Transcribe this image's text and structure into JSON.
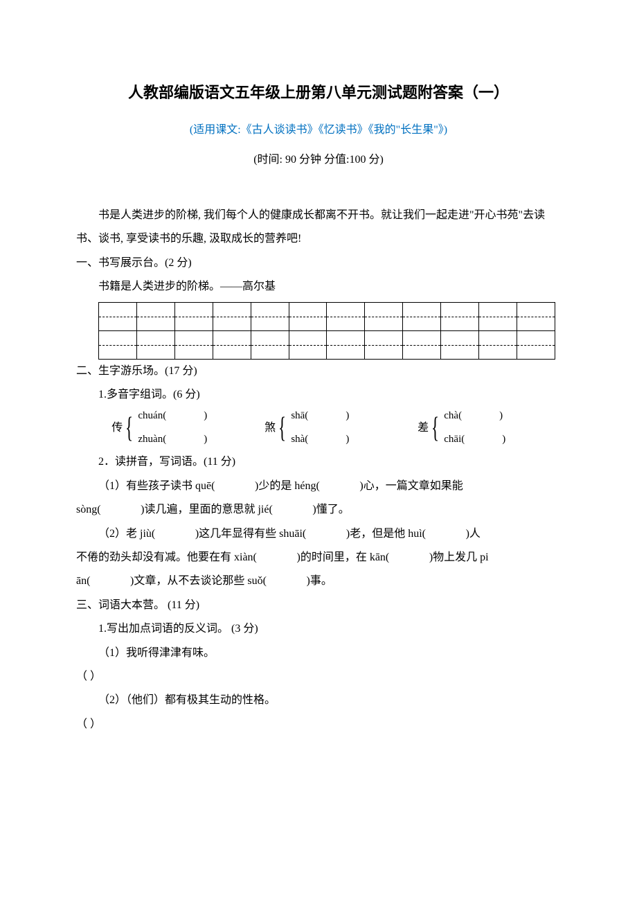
{
  "title": "人教部编版语文五年级上册第八单元测试题附答案（一）",
  "subtitle": "(适用课文:《古人谈读书》《忆读书》《我的\"长生果\"》)",
  "timing": "(时间: 90 分钟  分值:100 分)",
  "intro": "书是人类进步的阶梯, 我们每个人的健康成长都离不开书。就让我们一起走进\"开心书苑\"去读书、谈书, 享受读书的乐趣, 汲取成长的营养吧!",
  "s1_heading": "一、书写展示台。(2 分)",
  "s1_quote": "书籍是人类进步的阶梯。——高尔基",
  "grid": {
    "rows": 2,
    "cols": 12
  },
  "s2_heading": "二、生字游乐场。(17 分)",
  "s2_q1": "1.多音字组词。(6 分)",
  "poly": [
    {
      "char": "传",
      "p1": "chuán(",
      "p2": "zhuàn("
    },
    {
      "char": "煞",
      "p1": "shā(",
      "p2": "shà("
    },
    {
      "char": "差",
      "p1": "chà(",
      "p2": "chāi("
    }
  ],
  "s2_q2": "2．读拼音，写词语。(11 分)",
  "s2_q2_l1_a": "（1）有些孩子读书 quē(",
  "s2_q2_l1_b": ")少的是 héng(",
  "s2_q2_l1_c": ")心，一篇文章如果能",
  "s2_q2_l2_a": "sòng(",
  "s2_q2_l2_b": ")读几遍，里面的意思就 jié(",
  "s2_q2_l2_c": ")懂了。",
  "s2_q2_l3_a": "（2）老 jiù(",
  "s2_q2_l3_b": ")这几年显得有些 shuāi(",
  "s2_q2_l3_c": ")老，但是他 huì(",
  "s2_q2_l3_d": ")人",
  "s2_q2_l4_a": "不倦的劲头却没有减。他要在有 xiàn(",
  "s2_q2_l4_b": ")的时间里，在 kān(",
  "s2_q2_l4_c": ")物上发几 pi",
  "s2_q2_l5_a": "ān(",
  "s2_q2_l5_b": ")文章，从不去谈论那些 suǒ(",
  "s2_q2_l5_c": ")事。",
  "s3_heading": "三、词语大本营。 (11 分)",
  "s3_q1": "1.写出加点词语的反义词。 (3 分)",
  "s3_q1_1": "（1）我听得津津有味。",
  "blank1": "（               ）",
  "s3_q1_2": "（2）（他们）都有极其生动的性格。",
  "blank2": "（            ）",
  "colors": {
    "subtitle": "#0070c0",
    "text": "#000000",
    "background": "#ffffff"
  }
}
